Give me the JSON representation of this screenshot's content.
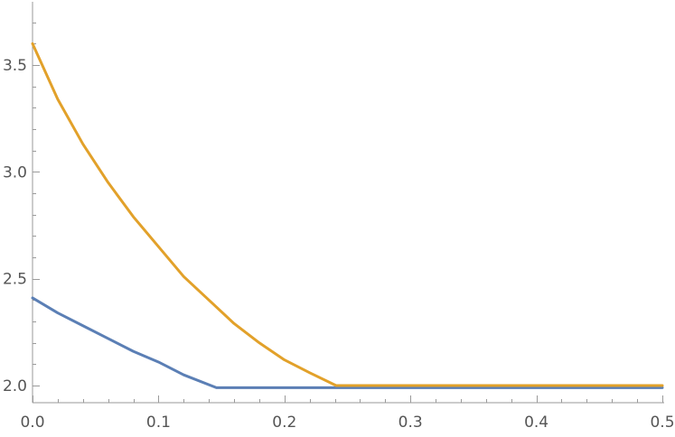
{
  "chart_data": {
    "type": "line",
    "title": "",
    "xlabel": "",
    "ylabel": "",
    "xlim": [
      0,
      0.5
    ],
    "ylim": [
      1.97,
      3.78
    ],
    "grid": false,
    "legend": "none",
    "x_ticks": [
      0,
      0.1,
      0.2,
      0.3,
      0.4,
      0.5
    ],
    "x_tick_labels": [
      "0.0",
      "0.1",
      "0.2",
      "0.3",
      "0.4",
      "0.5"
    ],
    "y_ticks": [
      2.0,
      2.5,
      3.0,
      3.5
    ],
    "y_tick_labels": [
      "2.0",
      "2.5",
      "3.0",
      "3.5"
    ],
    "colors": {
      "series1": "#5b7fb5",
      "series2": "#e2a12a",
      "axis": "#9a9a9a",
      "tick_label": "#555555"
    },
    "series": [
      {
        "color": "#5b7fb5",
        "x": [
          0,
          0.02,
          0.04,
          0.06,
          0.08,
          0.1,
          0.12,
          0.146,
          0.2,
          0.3,
          0.4,
          0.5
        ],
        "y": [
          2.41,
          2.34,
          2.28,
          2.22,
          2.16,
          2.11,
          2.05,
          1.99,
          1.99,
          1.99,
          1.99,
          1.99
        ]
      },
      {
        "color": "#e2a12a",
        "x": [
          0,
          0.02,
          0.04,
          0.06,
          0.08,
          0.1,
          0.12,
          0.14,
          0.16,
          0.18,
          0.2,
          0.22,
          0.241,
          0.3,
          0.4,
          0.5
        ],
        "y": [
          3.6,
          3.34,
          3.13,
          2.95,
          2.79,
          2.65,
          2.51,
          2.4,
          2.29,
          2.2,
          2.12,
          2.06,
          2.0,
          2.0,
          2.0,
          2.0
        ]
      }
    ]
  }
}
